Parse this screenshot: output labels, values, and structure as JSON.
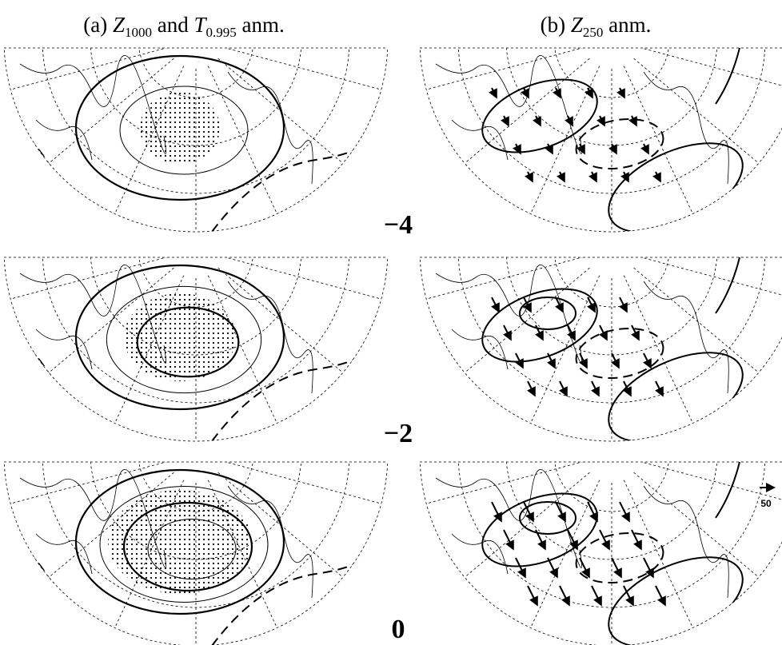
{
  "panels": [
    {
      "title": [
        "(a) ",
        "Z",
        "1000",
        " and ",
        "T",
        "0.995",
        " anm."
      ]
    },
    {
      "title": [
        "(b) ",
        "Z",
        "250",
        " anm."
      ]
    }
  ],
  "lags": [
    "−4",
    "−2",
    "0"
  ],
  "reference_vector": "50"
}
